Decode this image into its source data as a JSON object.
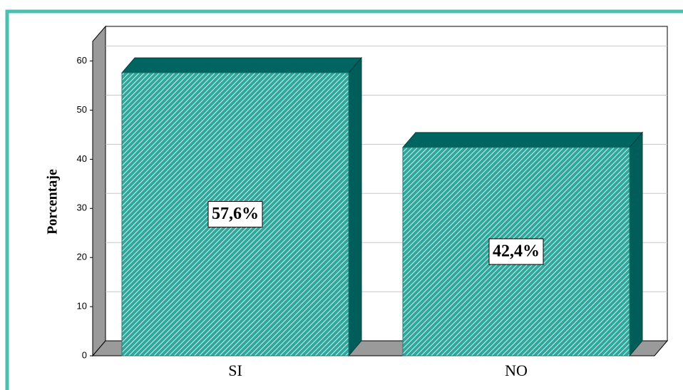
{
  "chart_data": {
    "type": "bar3d",
    "y_label": "Porcentaje",
    "categories": [
      "SI",
      "NO"
    ],
    "values": [
      57.6,
      42.4
    ],
    "value_labels": [
      "57,6%",
      "42,4%"
    ],
    "color": "#2ea89c",
    "ylim": [
      0,
      64
    ],
    "yticks": [
      0,
      10,
      20,
      30,
      40,
      50,
      60
    ],
    "grid": true
  }
}
